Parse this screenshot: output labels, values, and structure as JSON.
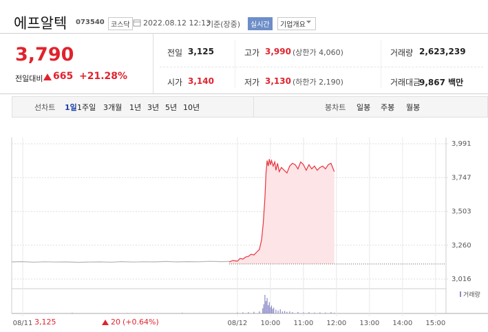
{
  "header": {
    "name": "에프알텍",
    "code": "073540",
    "market": "코스닥",
    "datetime": "2022.08.12 12:13",
    "basis": "기준(장중)",
    "realtime": "실시간",
    "company_info": "기업개요"
  },
  "quote": {
    "price": "3,790",
    "change_label": "전일대비",
    "change": "665",
    "change_rate": "+21.28%"
  },
  "stats": [
    {
      "label": "전일",
      "value": "3,125"
    },
    {
      "label": "고가",
      "value": "3,990",
      "note": "(상한가 4,060)"
    },
    {
      "label": "거래량",
      "value": "2,623,239"
    },
    {
      "label": "시가",
      "value": "3,140"
    },
    {
      "label": "저가",
      "value": "3,130",
      "note": "(하한가 2,190)"
    },
    {
      "label": "거래대금",
      "value": "9,867 백만"
    }
  ],
  "tabs": {
    "line_label": "선차트",
    "line": [
      "1일",
      "1주일",
      "3개월",
      "1년",
      "3년",
      "5년",
      "10년"
    ],
    "candle_label": "봉차트",
    "candle": [
      "일봉",
      "주봉",
      "월봉"
    ]
  },
  "chart_data": {
    "type": "line",
    "xlim": [
      -410,
      379
    ],
    "xticks": [
      {
        "value": -390,
        "label": "08/11"
      },
      {
        "value": 0,
        "label": "08/12"
      },
      {
        "value": 60,
        "label": "10:00"
      },
      {
        "value": 120,
        "label": "11:00"
      },
      {
        "value": 180,
        "label": "12:00"
      },
      {
        "value": 240,
        "label": "13:00"
      },
      {
        "value": 300,
        "label": "14:00"
      },
      {
        "value": 360,
        "label": "15:00"
      }
    ],
    "ylim": [
      2947,
      4036
    ],
    "yticks": [
      {
        "value": 3016,
        "label": "3,016"
      },
      {
        "value": 3260,
        "label": "3,260"
      },
      {
        "value": 3503,
        "label": "3,503"
      },
      {
        "value": 3747,
        "label": "3,747"
      },
      {
        "value": 3991,
        "label": "3,991"
      }
    ],
    "baseline": 3125,
    "series": [
      {
        "color": "#b4b4b4",
        "x": [
          -410,
          -390,
          -370,
          -350,
          -330,
          -310,
          -290,
          -270,
          -250,
          -230,
          -210,
          -190,
          -170,
          -150,
          -130,
          -110,
          -90,
          -70,
          -50,
          -30,
          -15
        ],
        "values": [
          3140,
          3142,
          3138,
          3141,
          3139,
          3140,
          3137,
          3139,
          3140,
          3138,
          3142,
          3139,
          3141,
          3140,
          3143,
          3140,
          3142,
          3141,
          3144,
          3142,
          3143
        ]
      },
      {
        "color": "#e8323c",
        "fill": "#fde4e6",
        "x": [
          -15,
          -8,
          0,
          5,
          10,
          15,
          20,
          25,
          30,
          35,
          40,
          44,
          47,
          50,
          52,
          54,
          56,
          58,
          60,
          62,
          65,
          68,
          70,
          73,
          76,
          80,
          85,
          90,
          95,
          100,
          105,
          110,
          115,
          120,
          125,
          130,
          135,
          140,
          145,
          150,
          155,
          160,
          165,
          170,
          173,
          176
        ],
        "values": [
          3140,
          3150,
          3145,
          3165,
          3160,
          3175,
          3180,
          3195,
          3190,
          3210,
          3230,
          3300,
          3420,
          3600,
          3780,
          3870,
          3830,
          3880,
          3840,
          3870,
          3830,
          3860,
          3800,
          3850,
          3790,
          3820,
          3800,
          3780,
          3830,
          3850,
          3840,
          3810,
          3860,
          3840,
          3800,
          3840,
          3810,
          3830,
          3800,
          3820,
          3830,
          3810,
          3840,
          3850,
          3820,
          3790
        ]
      }
    ],
    "volume": {
      "name": "거래량",
      "color": "#8a8ac8",
      "ylim": [
        0,
        100
      ],
      "x": [
        -300,
        -200,
        -100,
        0,
        10,
        20,
        30,
        40,
        46,
        48,
        50,
        52,
        54,
        56,
        58,
        60,
        62,
        64,
        66,
        70,
        74,
        78,
        82,
        86,
        90,
        95,
        100,
        110,
        120,
        130,
        140,
        150,
        160,
        170,
        176
      ],
      "values": [
        3,
        2,
        3,
        4,
        5,
        6,
        8,
        10,
        25,
        45,
        90,
        60,
        75,
        40,
        55,
        30,
        38,
        22,
        28,
        18,
        14,
        20,
        10,
        12,
        8,
        10,
        6,
        7,
        5,
        6,
        4,
        5,
        4,
        6,
        3
      ]
    }
  },
  "footer": {
    "close": "3,125",
    "change": "20",
    "rate": "(+0.64%)"
  }
}
